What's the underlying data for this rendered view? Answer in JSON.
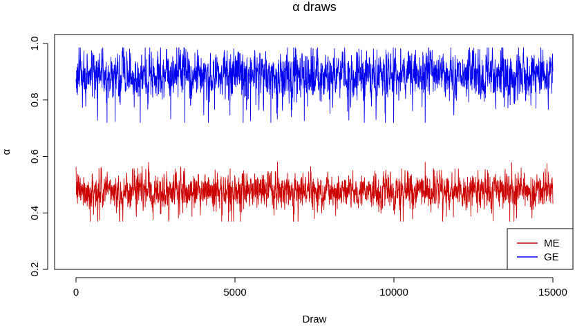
{
  "chart_data": {
    "type": "line",
    "title": "α draws",
    "xlabel": "Draw",
    "ylabel": "α",
    "xlim": [
      0,
      15000
    ],
    "ylim": [
      0.2,
      1.0
    ],
    "x_ticks": [
      0,
      5000,
      10000,
      15000
    ],
    "y_ticks": [
      0.2,
      0.4,
      0.6,
      0.8,
      1.0
    ],
    "x_tick_labels": [
      "0",
      "5000",
      "10000",
      "15000"
    ],
    "y_tick_labels": [
      "0.2",
      "0.4",
      "0.6",
      "0.8",
      "1.0"
    ],
    "grid": false,
    "legend_position": "bottom-right",
    "series": [
      {
        "name": "ME",
        "color": "#cc0000",
        "center": 0.48,
        "spread": 0.03,
        "min": 0.37,
        "max": 0.58
      },
      {
        "name": "GE",
        "color": "#0000ee",
        "center": 0.89,
        "spread": 0.04,
        "min": 0.72,
        "max": 0.985
      }
    ],
    "n_draws": 15000
  }
}
